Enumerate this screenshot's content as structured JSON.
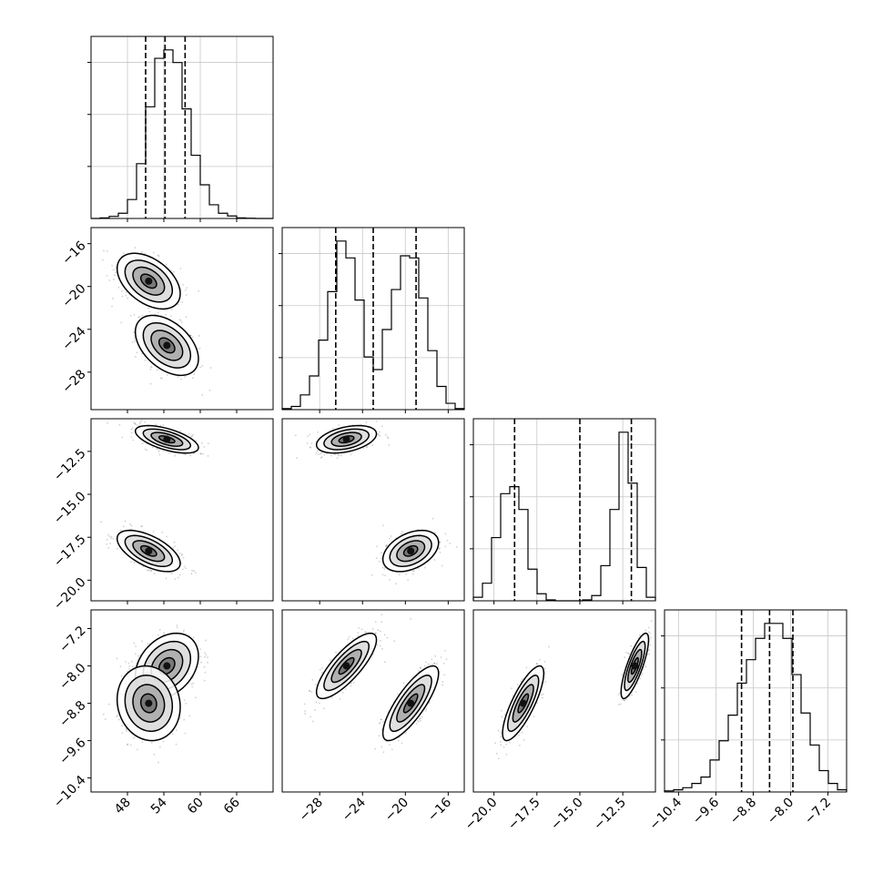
{
  "chart_data": {
    "type": "corner",
    "grid": true,
    "n_params": 4,
    "params": [
      {
        "range": [
          42,
          72
        ],
        "ticks": [
          48,
          54,
          60,
          66
        ],
        "tick_labels": [
          "48",
          "54",
          "60",
          "66"
        ],
        "quantiles": [
          51.0,
          54.2,
          57.5
        ]
      },
      {
        "range": [
          -31.5,
          -14.5
        ],
        "ticks": [
          -28,
          -24,
          -20,
          -16
        ],
        "tick_labels": [
          "−28",
          "−24",
          "−20",
          "−16"
        ],
        "quantiles": [
          -26.5,
          -23.0,
          -19.0
        ]
      },
      {
        "range": [
          -21.2,
          -10.6
        ],
        "ticks": [
          -20,
          -17.5,
          -15,
          -12.5
        ],
        "tick_labels": [
          "−20.0",
          "−17.5",
          "−15.0",
          "−12.5"
        ],
        "quantiles": [
          -18.8,
          -15.0,
          -12.0
        ]
      },
      {
        "range": [
          -10.7,
          -6.8
        ],
        "ticks": [
          -10.4,
          -9.6,
          -8.8,
          -8.0,
          -7.2
        ],
        "tick_labels": [
          "−10.4",
          "−9.6",
          "−8.8",
          "−8.0",
          "−7.2"
        ],
        "quantiles": [
          -9.05,
          -8.45,
          -7.95
        ]
      }
    ],
    "histograms": [
      {
        "x": [
          42.75,
          44.25,
          45.75,
          47.25,
          48.75,
          50.25,
          51.75,
          53.25,
          54.75,
          56.25,
          57.75,
          59.25,
          60.75,
          62.25,
          63.75,
          65.25,
          66.75,
          68.25,
          69.75,
          71.25
        ],
        "values": [
          0.0,
          0.3,
          1.0,
          2.5,
          9.0,
          26.0,
          53.0,
          76.0,
          80.0,
          74.0,
          52.0,
          30.0,
          16.0,
          6.5,
          2.5,
          1.2,
          0.3,
          0.1,
          0.0,
          0.0
        ]
      },
      {
        "x": [
          -31.075,
          -30.225,
          -29.375,
          -28.525,
          -27.675,
          -26.825,
          -25.975,
          -25.125,
          -24.275,
          -23.425,
          -22.575,
          -21.725,
          -20.875,
          -20.025,
          -19.175,
          -18.325,
          -17.475,
          -16.625,
          -15.775,
          -14.925
        ],
        "values": [
          0.5,
          1.5,
          7.0,
          16.0,
          33.0,
          56.0,
          80.0,
          72.0,
          52.0,
          25.0,
          19.0,
          38.0,
          57.0,
          73.0,
          72.0,
          53.0,
          28.0,
          11.0,
          3.0,
          0.5
        ]
      },
      {
        "x": [
          -20.935,
          -20.405,
          -19.875,
          -19.345,
          -18.815,
          -18.285,
          -17.755,
          -17.225,
          -16.695,
          -16.165,
          -15.635,
          -15.105,
          -14.575,
          -14.045,
          -13.515,
          -12.985,
          -12.455,
          -11.925,
          -11.395,
          -10.865
        ],
        "values": [
          2.0,
          10.0,
          36.0,
          61.0,
          65.0,
          52.0,
          18.0,
          4.0,
          0.5,
          0.0,
          0.0,
          0.0,
          0.5,
          3.0,
          20.0,
          52.0,
          96.0,
          67.0,
          19.0,
          2.0
        ]
      },
      {
        "x": [
          -10.6025,
          -10.4075,
          -10.2125,
          -10.0175,
          -9.8225,
          -9.6275,
          -9.4325,
          -9.2375,
          -9.0425,
          -8.8475,
          -8.6525,
          -8.4575,
          -8.2625,
          -8.0675,
          -7.8725,
          -7.6775,
          -7.4825,
          -7.2875,
          -7.0925,
          -6.8975
        ],
        "values": [
          0.5,
          1.0,
          2.0,
          4.0,
          7.0,
          15.0,
          24.0,
          36.0,
          51.0,
          62.0,
          72.0,
          79.0,
          79.0,
          72.0,
          55.0,
          37.0,
          22.0,
          10.0,
          4.0,
          1.0
        ]
      }
    ],
    "modes": [
      [
        54.5,
        -25.5,
        -11.8,
        -8.0
      ],
      [
        51.5,
        -19.5,
        -18.3,
        -8.8
      ]
    ],
    "mode_spreads": [
      [
        2.6,
        1.4,
        0.4,
        0.35
      ],
      [
        2.6,
        1.3,
        0.6,
        0.4
      ]
    ],
    "pair_correlations": {
      "1-0": [
        -0.45,
        -0.45
      ],
      "2-0": [
        -0.6,
        -0.6
      ],
      "2-1": [
        0.4,
        0.4
      ],
      "3-0": [
        0.3,
        -0.1
      ],
      "3-1": [
        0.8,
        0.8
      ],
      "3-2": [
        0.8,
        0.8
      ]
    },
    "contour_levels": [
      0.5,
      1.0,
      1.5,
      2.0
    ]
  }
}
